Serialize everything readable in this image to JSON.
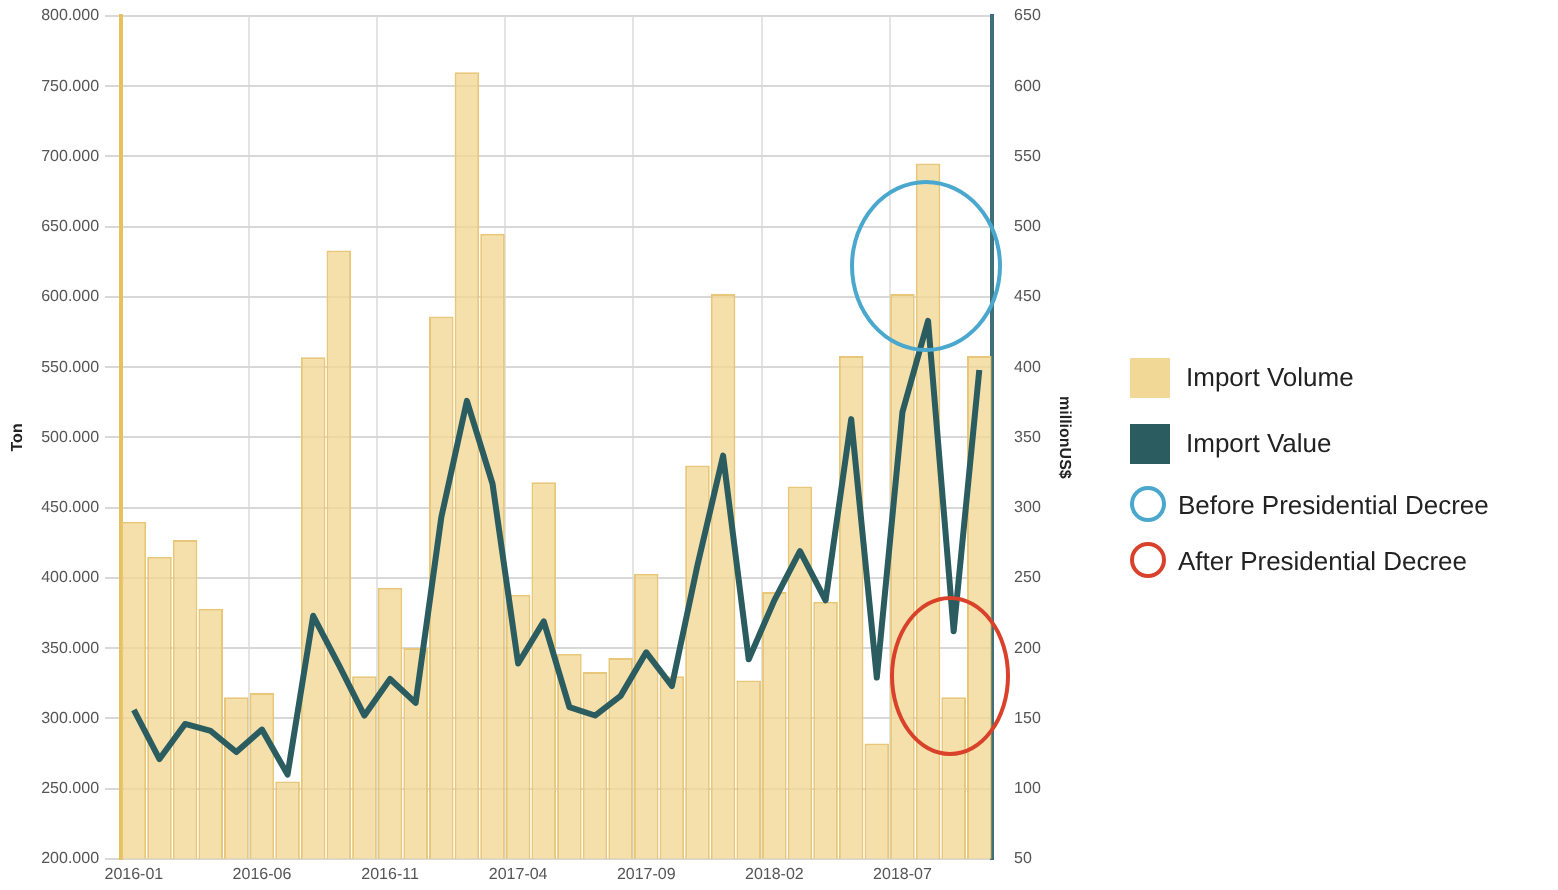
{
  "chart_data": {
    "type": "bar",
    "categories": [
      "2016-01",
      null,
      null,
      null,
      null,
      "2016-06",
      null,
      null,
      null,
      null,
      "2016-11",
      null,
      null,
      null,
      null,
      "2017-04",
      null,
      null,
      null,
      null,
      "2017-09",
      null,
      null,
      null,
      null,
      "2018-02",
      null,
      null,
      null,
      null,
      "2018-07",
      null,
      null,
      null
    ],
    "series": [
      {
        "name": "Import Volume",
        "color": "#f2d896",
        "values": [
          440000,
          415000,
          427000,
          378000,
          315000,
          318000,
          255000,
          557000,
          633000,
          330000,
          393000,
          350000,
          586000,
          760000,
          645000,
          388000,
          468000,
          346000,
          333000,
          343000,
          403000,
          330000,
          480000,
          602000,
          327000,
          390000,
          465000,
          383000,
          558000,
          282000,
          602000,
          695000,
          315000,
          558000
        ]
      },
      {
        "name": "Import Value",
        "type": "line",
        "axis": "y2",
        "color": "#2b5c60",
        "values": [
          156,
          121,
          146,
          141,
          126,
          142,
          110,
          223,
          188,
          152,
          178,
          161,
          293,
          376,
          317,
          189,
          219,
          158,
          152,
          166,
          197,
          173,
          259,
          337,
          192,
          234,
          269,
          234,
          363,
          179,
          368,
          433,
          212,
          398
        ]
      }
    ],
    "ylabel": "Ton",
    "y2label": "millionUS$",
    "ylim": [
      200000,
      800000
    ],
    "yticks": [
      {
        "value": 200000,
        "label": "200.000"
      },
      {
        "value": 250000,
        "label": "250.000"
      },
      {
        "value": 300000,
        "label": "300.000"
      },
      {
        "value": 350000,
        "label": "350.000"
      },
      {
        "value": 400000,
        "label": "400.000"
      },
      {
        "value": 450000,
        "label": "450.000"
      },
      {
        "value": 500000,
        "label": "500.000"
      },
      {
        "value": 550000,
        "label": "550.000"
      },
      {
        "value": 600000,
        "label": "600.000"
      },
      {
        "value": 650000,
        "label": "650.000"
      },
      {
        "value": 700000,
        "label": "700.000"
      },
      {
        "value": 750000,
        "label": "750.000"
      },
      {
        "value": 800000,
        "label": "800.000"
      }
    ],
    "y2lim": [
      50,
      650
    ],
    "y2ticks": [
      50,
      100,
      150,
      200,
      250,
      300,
      350,
      400,
      450,
      500,
      550,
      600,
      650
    ],
    "annotations": [
      "Before Presidential Decree",
      "After Presidential Decree"
    ],
    "grid": true,
    "legend": "right",
    "marker": "none",
    "line_style": "solid"
  }
}
